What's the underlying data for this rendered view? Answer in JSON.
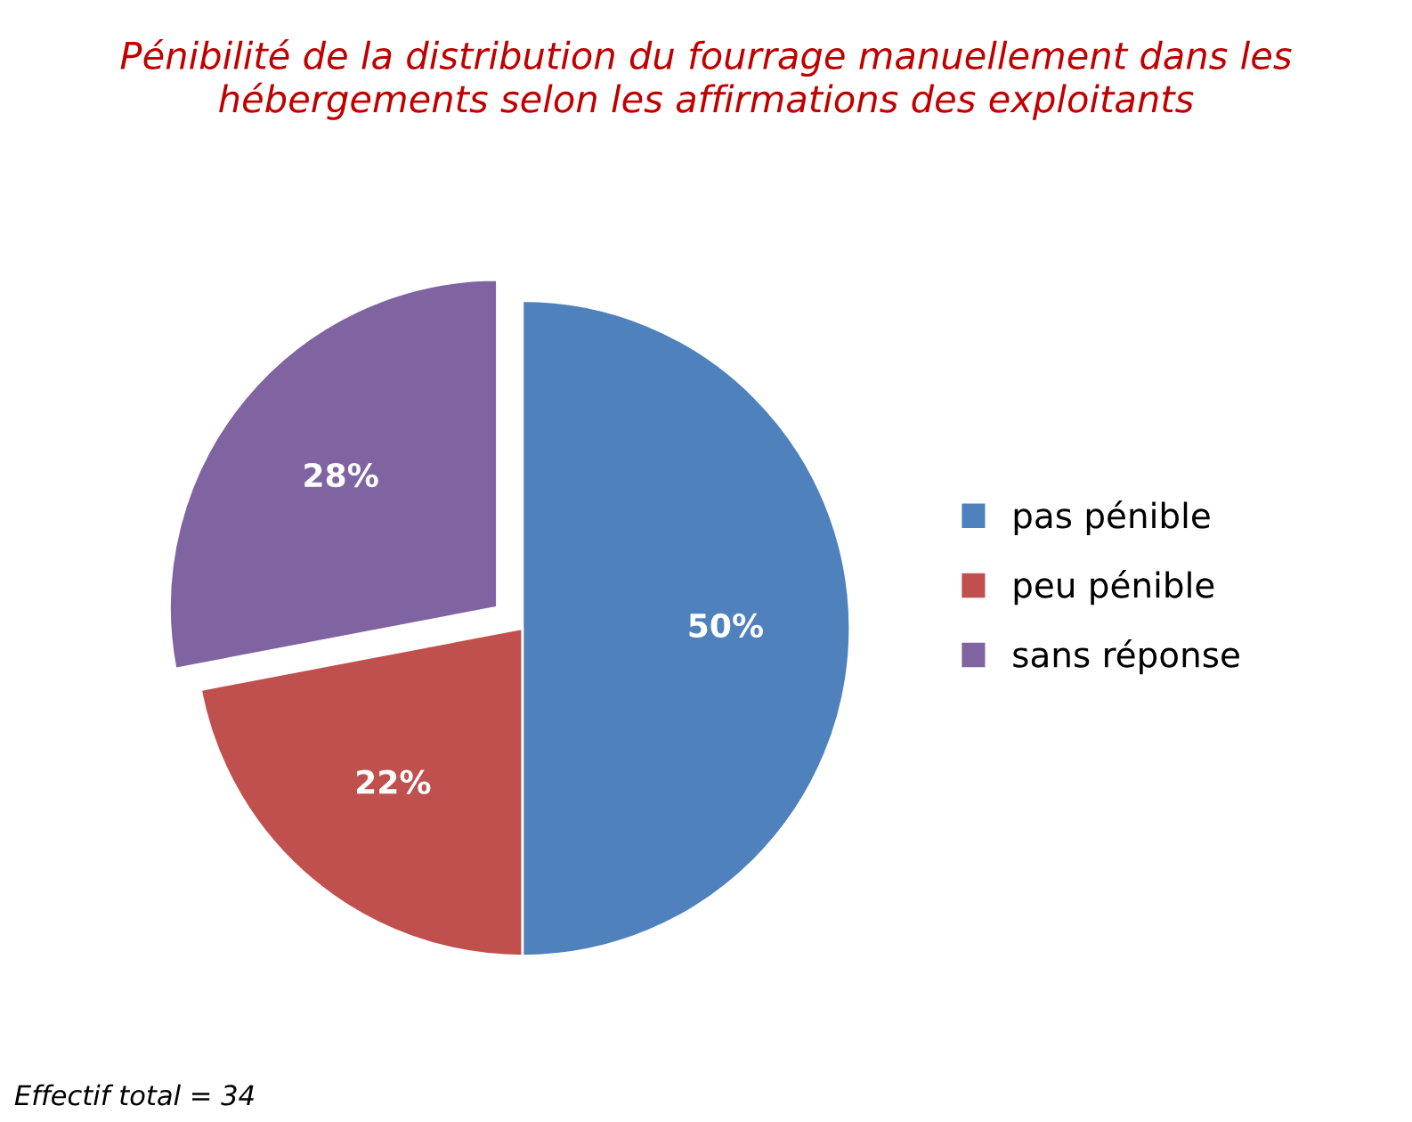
{
  "chart_data": {
    "type": "pie",
    "title": "Pénibilité de la distribution du fourrage manuellement dans les hébergements selon les affirmations des exploitants",
    "categories": [
      "pas pénible",
      "peu pénible",
      "sans réponse"
    ],
    "values": [
      50,
      22,
      28
    ],
    "colors": [
      "#4f81bd",
      "#c0504d",
      "#8064a2"
    ],
    "value_labels": [
      "50%",
      "22%",
      "28%"
    ],
    "legend": "right",
    "annotations": [
      "Effectif total = 34"
    ]
  }
}
